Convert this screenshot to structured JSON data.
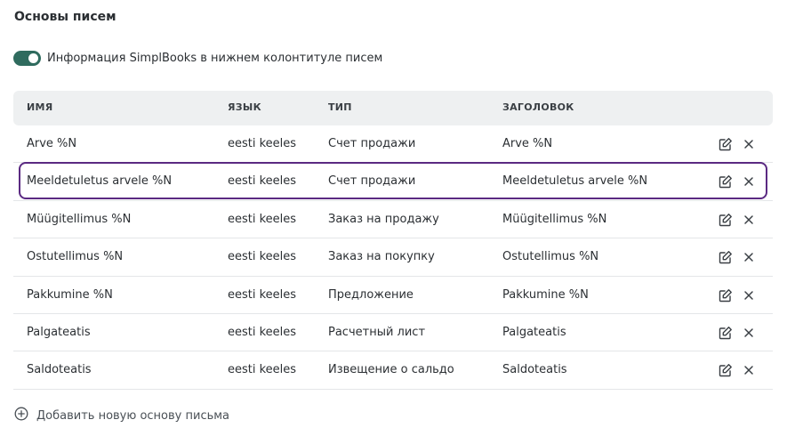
{
  "page": {
    "title": "Основы писем"
  },
  "footer_toggle": {
    "label": "Информация SimplBooks в нижнем колонтитуле писем",
    "enabled": true
  },
  "table": {
    "headers": [
      "ИМЯ",
      "ЯЗЫК",
      "ТИП",
      "ЗАГОЛОВОК"
    ],
    "rows": [
      {
        "name": "Arve %N",
        "language": "eesti keeles",
        "type": "Счет продажи",
        "subject": "Arve %N"
      },
      {
        "name": "Meeldetuletus arvele %N",
        "language": "eesti keeles",
        "type": "Счет продажи",
        "subject": "Meeldetuletus arvele %N"
      },
      {
        "name": "Müügitellimus %N",
        "language": "eesti keeles",
        "type": "Заказ на продажу",
        "subject": "Müügitellimus %N"
      },
      {
        "name": "Ostutellimus %N",
        "language": "eesti keeles",
        "type": "Заказ на покупку",
        "subject": "Ostutellimus %N"
      },
      {
        "name": "Pakkumine %N",
        "language": "eesti keeles",
        "type": "Предложение",
        "subject": "Pakkumine %N"
      },
      {
        "name": "Palgateatis",
        "language": "eesti keeles",
        "type": "Расчетный лист",
        "subject": "Palgateatis"
      },
      {
        "name": "Saldoteatis",
        "language": "eesti keeles",
        "type": "Извещение о сальдо",
        "subject": "Saldoteatis"
      }
    ]
  },
  "add_button": {
    "label": "Добавить новую основу письма",
    "icon": "plus-circle-icon"
  },
  "colors": {
    "toggle": "#2f6b5e",
    "highlight": "#5b2a82",
    "header_bg": "#eef0f1"
  }
}
